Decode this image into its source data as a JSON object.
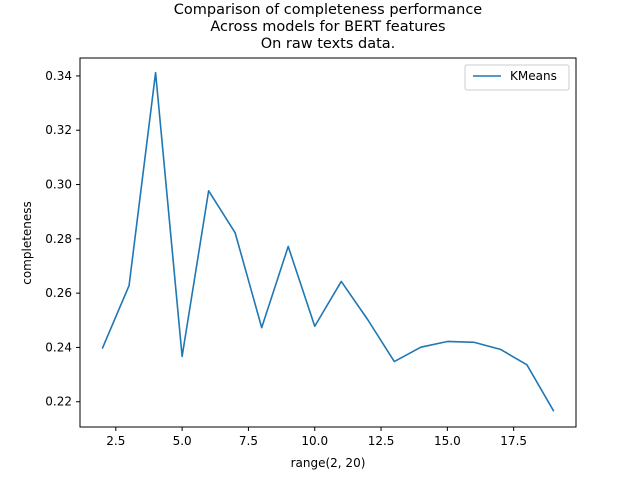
{
  "chart_data": {
    "type": "line",
    "title_lines": [
      "Comparison of completeness performance",
      "Across models for BERT features",
      "On raw texts data."
    ],
    "xlabel": "range(2, 20)",
    "ylabel": "completeness",
    "xlim": [
      1.15,
      19.85
    ],
    "ylim": [
      0.2107,
      0.3466
    ],
    "xticks": [
      2.5,
      5.0,
      7.5,
      10.0,
      12.5,
      15.0,
      17.5
    ],
    "xtick_labels": [
      "2.5",
      "5.0",
      "7.5",
      "10.0",
      "12.5",
      "15.0",
      "17.5"
    ],
    "yticks": [
      0.22,
      0.24,
      0.26,
      0.28,
      0.3,
      0.32,
      0.34
    ],
    "ytick_labels": [
      "0.22",
      "0.24",
      "0.26",
      "0.28",
      "0.30",
      "0.32",
      "0.34"
    ],
    "grid": false,
    "legend_position": "top-right",
    "series": [
      {
        "name": "KMeans",
        "color": "#1f77b4",
        "x": [
          2,
          3,
          4,
          5,
          6,
          7,
          8,
          9,
          10,
          11,
          12,
          13,
          14,
          15,
          16,
          17,
          18,
          19
        ],
        "y": [
          0.2398,
          0.2628,
          0.3412,
          0.2367,
          0.2977,
          0.2822,
          0.2473,
          0.2772,
          0.2478,
          0.2643,
          0.2502,
          0.2348,
          0.2401,
          0.2422,
          0.2419,
          0.2393,
          0.2336,
          0.2167
        ]
      }
    ]
  }
}
